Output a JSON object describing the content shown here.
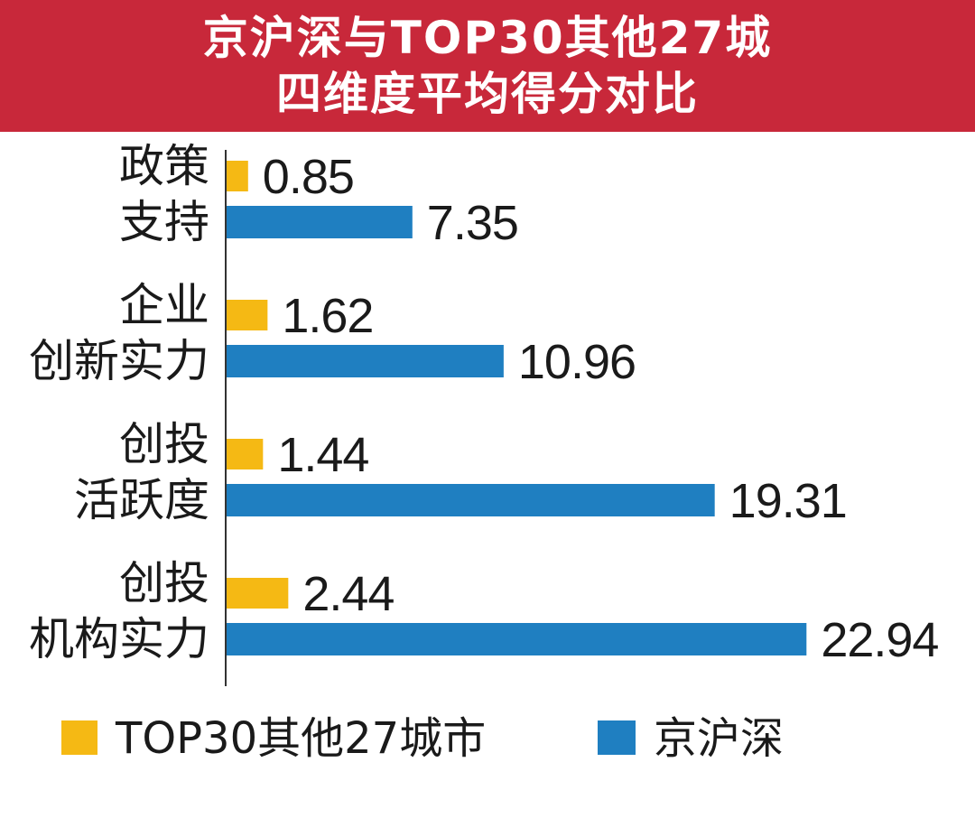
{
  "title": {
    "line1": "京沪深与TOP30其他27城",
    "line2": "四维度平均得分对比"
  },
  "colors": {
    "banner": "#c8283a",
    "series_top30": "#f5b914",
    "series_jhs": "#1f7fc1"
  },
  "chart_data": {
    "type": "bar",
    "orientation": "horizontal",
    "categories": [
      [
        "政策",
        "支持"
      ],
      [
        "企业",
        "创新实力"
      ],
      [
        "创投",
        "活跃度"
      ],
      [
        "创投",
        "机构实力"
      ]
    ],
    "series": [
      {
        "name": "TOP30其他27城市",
        "values": [
          0.85,
          1.62,
          1.44,
          2.44
        ],
        "labels": [
          "0.85",
          "1.62",
          "1.44",
          "2.44"
        ]
      },
      {
        "name": "京沪深",
        "values": [
          7.35,
          10.96,
          19.31,
          22.94
        ],
        "labels": [
          "7.35",
          "10.96",
          "19.31",
          "22.94"
        ]
      }
    ],
    "xlim": [
      0,
      25
    ],
    "grid": false,
    "legend_position": "bottom"
  }
}
